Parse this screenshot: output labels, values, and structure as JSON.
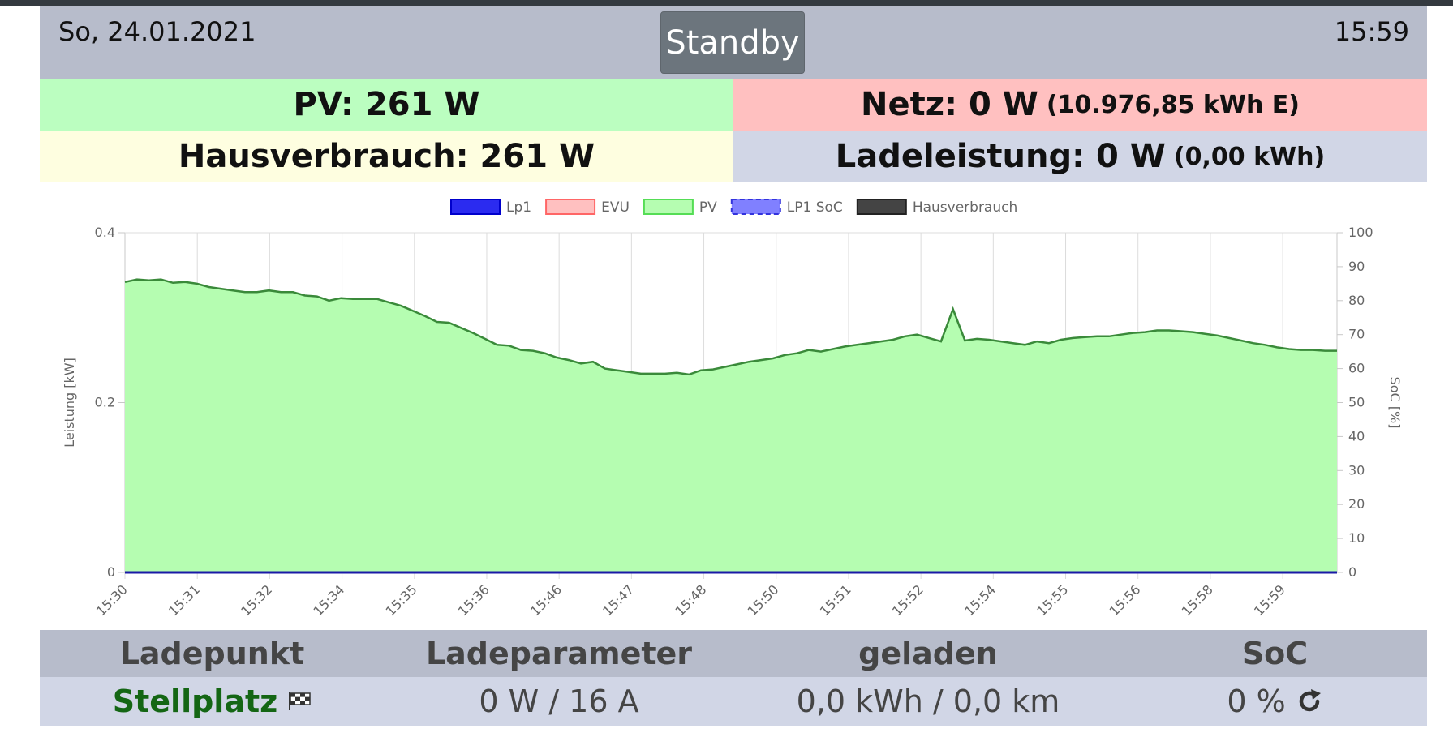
{
  "header": {
    "date": "So, 24.01.2021",
    "mode_button": "Standby",
    "time": "15:59"
  },
  "tiles": {
    "pv": {
      "label": "PV: 261 W"
    },
    "netz": {
      "label": "Netz: 0 W",
      "sub": "(10.976,85 kWh E)"
    },
    "haus": {
      "label": "Hausverbrauch: 261 W"
    },
    "lade": {
      "label": "Ladeleistung: 0 W",
      "sub": "(0,00 kWh)"
    }
  },
  "chart_data": {
    "type": "area",
    "legend": [
      {
        "name": "Lp1",
        "color": "#0000ff"
      },
      {
        "name": "EVU",
        "color": "#ff0000"
      },
      {
        "name": "PV",
        "color": "#00ff00"
      },
      {
        "name": "LP1 SoC",
        "color": "#0000ff"
      },
      {
        "name": "Hausverbrauch",
        "color": "#000000"
      }
    ],
    "legend_position": "top",
    "ylabel_left": "Leistung [kW]",
    "ylabel_right": "SoC [%]",
    "ylim_left": [
      0,
      0.4
    ],
    "ylim_right": [
      0,
      100
    ],
    "yticks_left": [
      "0",
      "0.2",
      "0.4"
    ],
    "yticks_right": [
      "0",
      "10",
      "20",
      "30",
      "40",
      "50",
      "60",
      "70",
      "80",
      "90",
      "100"
    ],
    "xticks": [
      "15:30",
      "15:31",
      "15:32",
      "15:34",
      "15:35",
      "15:36",
      "15:46",
      "15:47",
      "15:48",
      "15:50",
      "15:51",
      "15:52",
      "15:54",
      "15:55",
      "15:56",
      "15:58",
      "15:59"
    ],
    "grid": true,
    "series": [
      {
        "name": "PV",
        "values": [
          0.342,
          0.345,
          0.344,
          0.345,
          0.341,
          0.342,
          0.34,
          0.336,
          0.334,
          0.332,
          0.33,
          0.33,
          0.332,
          0.33,
          0.33,
          0.326,
          0.325,
          0.32,
          0.323,
          0.322,
          0.322,
          0.322,
          0.318,
          0.314,
          0.308,
          0.302,
          0.295,
          0.294,
          0.288,
          0.282,
          0.275,
          0.268,
          0.267,
          0.262,
          0.261,
          0.258,
          0.253,
          0.25,
          0.246,
          0.248,
          0.24,
          0.238,
          0.236,
          0.234,
          0.234,
          0.234,
          0.235,
          0.233,
          0.238,
          0.239,
          0.242,
          0.245,
          0.248,
          0.25,
          0.252,
          0.256,
          0.258,
          0.262,
          0.26,
          0.263,
          0.266,
          0.268,
          0.27,
          0.272,
          0.274,
          0.278,
          0.28,
          0.276,
          0.272,
          0.31,
          0.273,
          0.275,
          0.274,
          0.272,
          0.27,
          0.268,
          0.272,
          0.27,
          0.274,
          0.276,
          0.277,
          0.278,
          0.278,
          0.28,
          0.282,
          0.283,
          0.285,
          0.285,
          0.284,
          0.283,
          0.281,
          0.279,
          0.276,
          0.273,
          0.27,
          0.268,
          0.265,
          0.263,
          0.262,
          0.262,
          0.261,
          0.261
        ]
      },
      {
        "name": "Lp1",
        "values": [
          0,
          0
        ]
      },
      {
        "name": "EVU",
        "values": [
          0,
          0
        ]
      },
      {
        "name": "Hausverbrauch",
        "values": [
          0,
          0
        ]
      }
    ]
  },
  "table": {
    "headers": [
      "Ladepunkt",
      "Ladeparameter",
      "geladen",
      "SoC"
    ],
    "row": {
      "name": "Stellplatz",
      "params": "0 W / 16 A",
      "charged": "0,0 kWh / 0,0 km",
      "soc": "0 %"
    }
  },
  "icons": {
    "flag": "checkered-flag-icon",
    "refresh": "refresh-icon"
  }
}
